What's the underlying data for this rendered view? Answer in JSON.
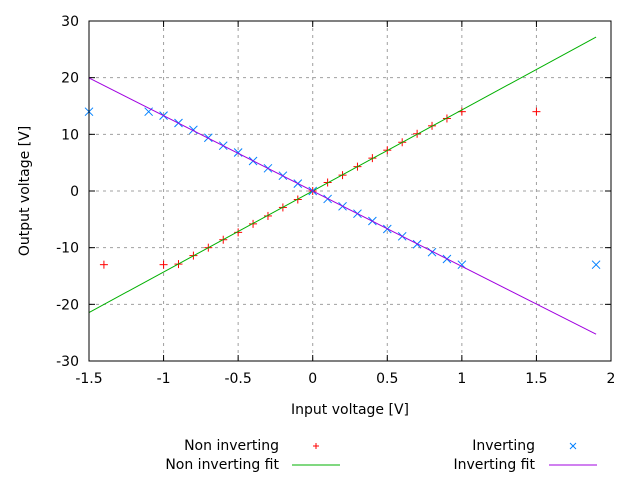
{
  "chart_data": {
    "type": "scatter",
    "title": "",
    "xlabel": "Input voltage [V]",
    "ylabel": "Output voltage [V]",
    "xlim": [
      -1.5,
      2
    ],
    "ylim": [
      -30,
      30
    ],
    "xticks": [
      -1.5,
      -1,
      -0.5,
      0,
      0.5,
      1,
      1.5,
      2
    ],
    "xtick_labels": [
      "-1.5",
      "-1",
      "-0.5",
      "0",
      "0.5",
      "1",
      "1.5",
      "2"
    ],
    "yticks": [
      -30,
      -20,
      -10,
      0,
      10,
      20,
      30
    ],
    "ytick_labels": [
      "-30",
      "-20",
      "-10",
      "0",
      "10",
      "20",
      "30"
    ],
    "grid": true,
    "legend_placement": "bottom",
    "series": [
      {
        "name": "Non inverting",
        "marker": "plus",
        "color": "#ff0000",
        "x": [
          -1.4,
          -1,
          -0.9,
          -0.8,
          -0.7,
          -0.6,
          -0.5,
          -0.4,
          -0.3,
          -0.2,
          -0.1,
          0,
          0.1,
          0.2,
          0.3,
          0.4,
          0.5,
          0.6,
          0.7,
          0.8,
          0.9,
          1,
          1.5
        ],
        "y": [
          -13,
          -13,
          -12.9,
          -11.4,
          -10,
          -8.6,
          -7.3,
          -5.8,
          -4.4,
          -2.9,
          -1.5,
          0,
          1.5,
          2.8,
          4.3,
          5.8,
          7.2,
          8.6,
          10.1,
          11.5,
          12.8,
          14,
          14
        ]
      },
      {
        "name": "Non inverting fit",
        "line": true,
        "color": "#00b000",
        "slope": 14.3,
        "intercept": 0,
        "x_range": [
          -1.5,
          1.9
        ]
      },
      {
        "name": "Inverting",
        "marker": "cross",
        "color": "#0080ff",
        "x": [
          -1.5,
          -1.1,
          -1,
          -0.9,
          -0.8,
          -0.7,
          -0.6,
          -0.5,
          -0.4,
          -0.3,
          -0.2,
          -0.1,
          0,
          0.1,
          0.2,
          0.3,
          0.4,
          0.5,
          0.6,
          0.7,
          0.8,
          0.9,
          1,
          1.9
        ],
        "y": [
          14,
          14,
          13.3,
          12,
          10.8,
          9.4,
          8,
          6.8,
          5.3,
          4,
          2.7,
          1.3,
          0,
          -1.4,
          -2.7,
          -4,
          -5.3,
          -6.7,
          -8,
          -9.4,
          -10.8,
          -12,
          -13,
          -13
        ]
      },
      {
        "name": "Inverting fit",
        "line": true,
        "color": "#a000e0",
        "slope": -13.3,
        "intercept": 0,
        "x_range": [
          -1.5,
          1.9
        ]
      }
    ]
  }
}
